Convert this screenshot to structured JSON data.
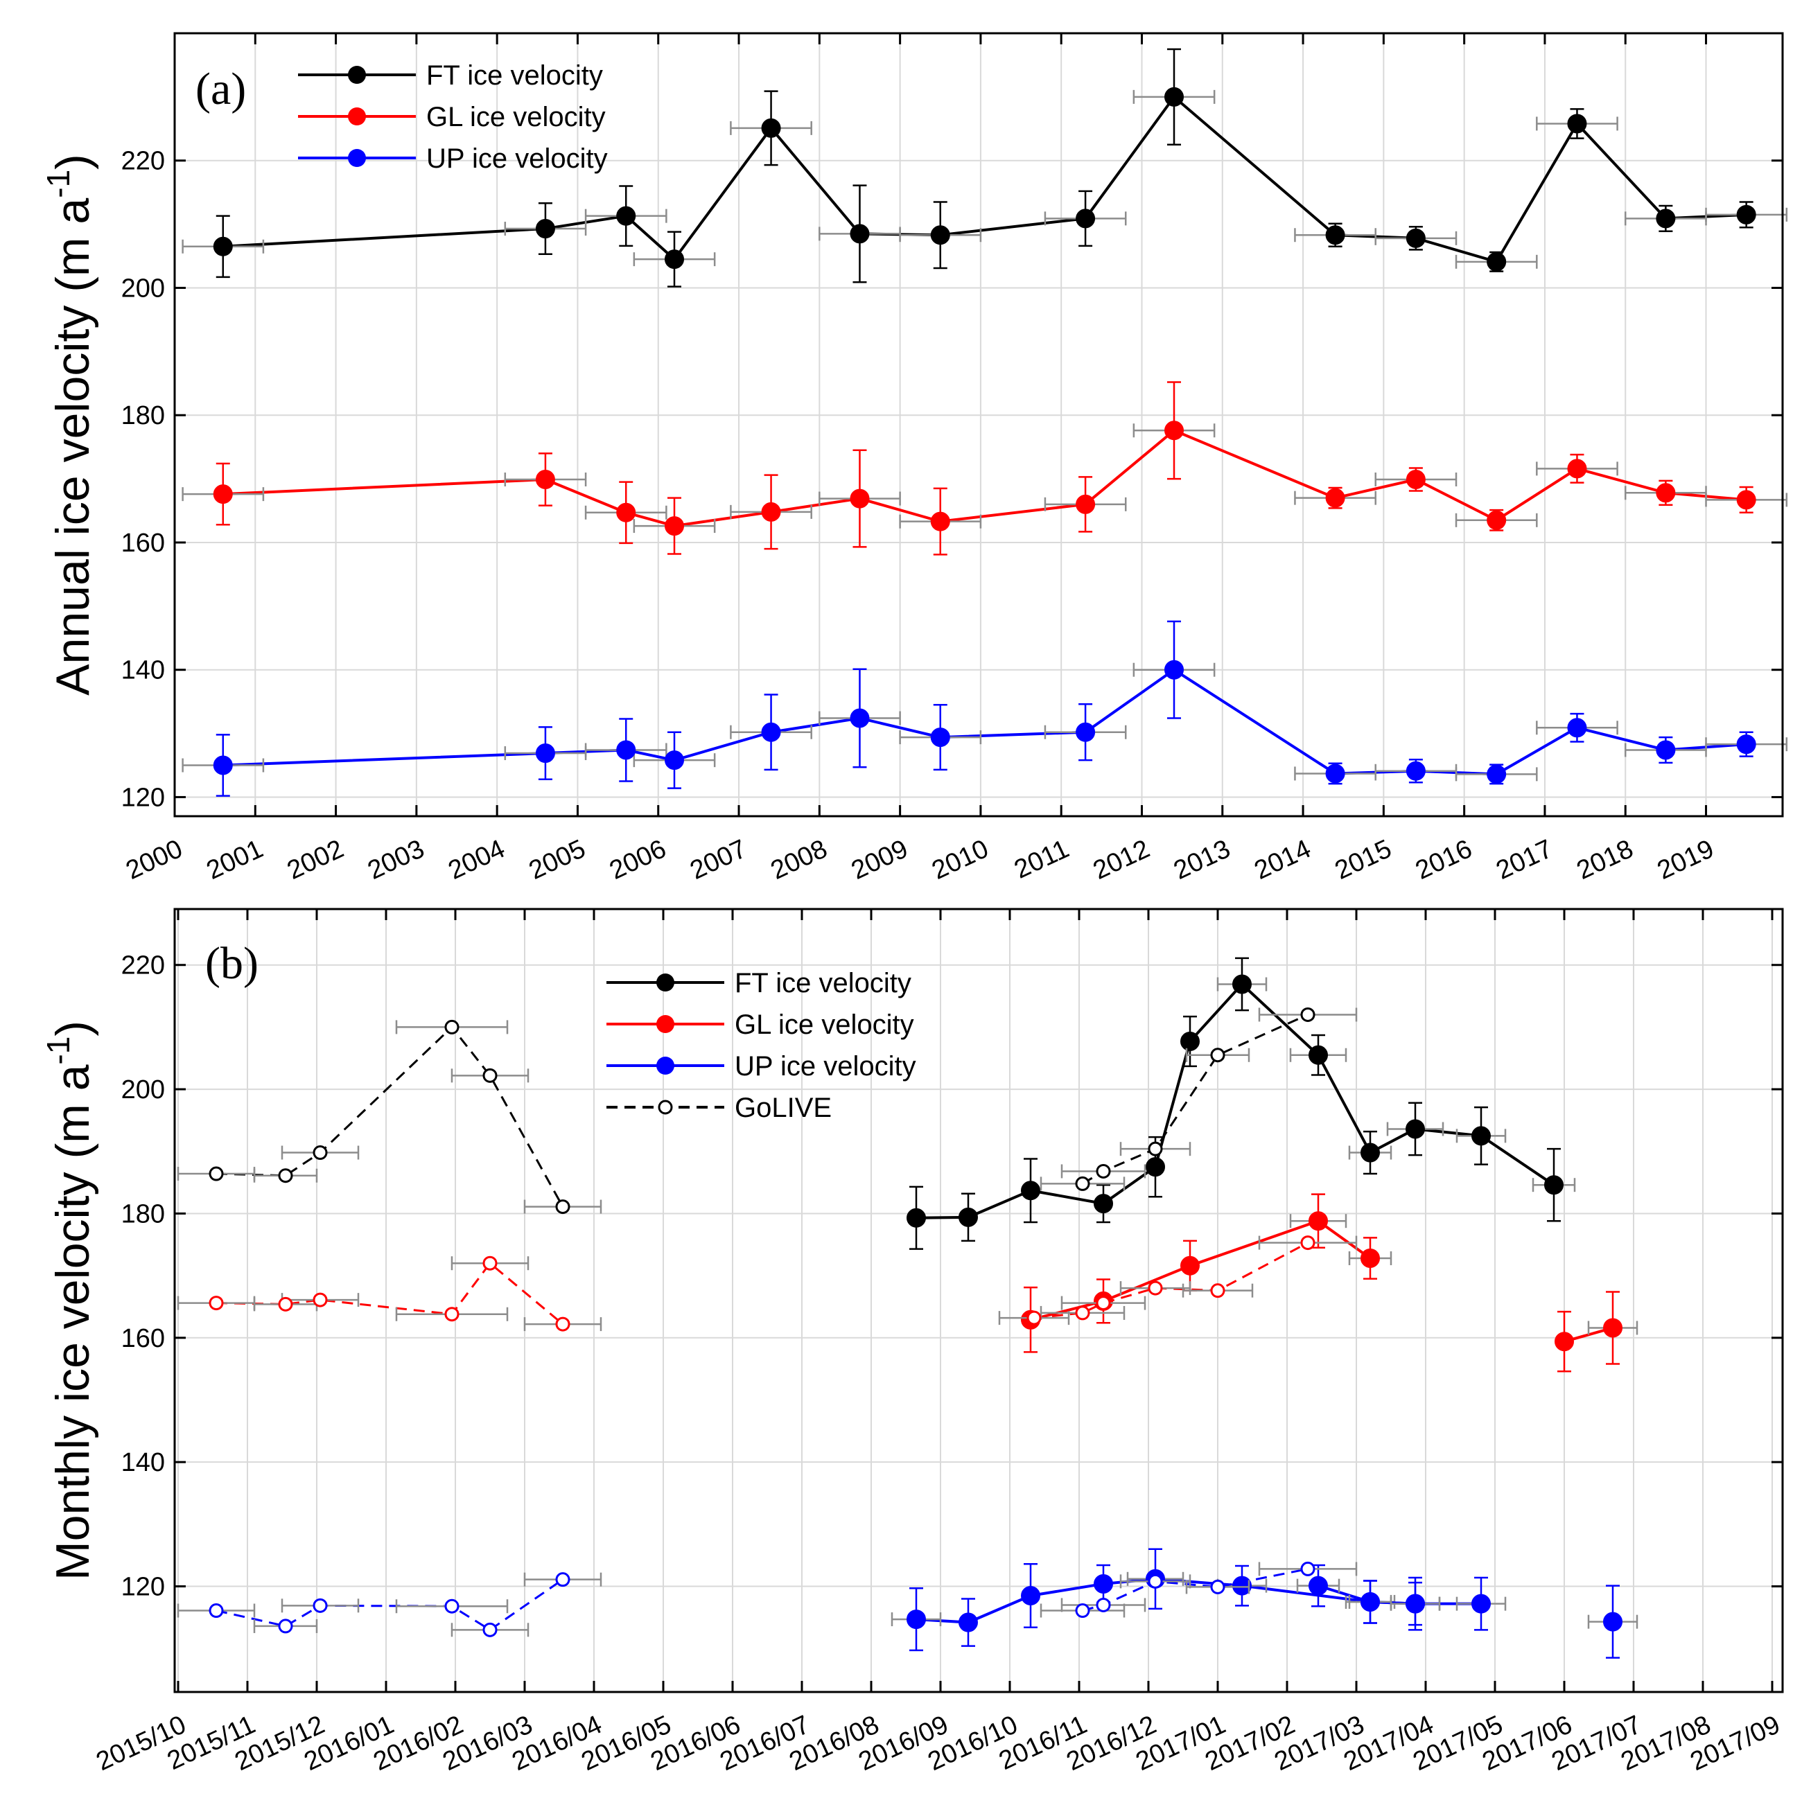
{
  "chart_data": [
    {
      "type": "line",
      "panel_label": "(a)",
      "ylabel": "Annual ice velocity (m a",
      "ylabel_sup": "-1",
      "ylabel_close": ")",
      "ylim": [
        117,
        240
      ],
      "yticks": [
        120,
        140,
        160,
        180,
        200,
        220
      ],
      "xlim": [
        2000,
        2019.95
      ],
      "xtick_values": [
        2000,
        2001,
        2002,
        2003,
        2004,
        2005,
        2006,
        2007,
        2008,
        2009,
        2010,
        2011,
        2012,
        2013,
        2014,
        2015,
        2016,
        2017,
        2018,
        2019
      ],
      "xtick_labels": [
        "2000",
        "2001",
        "2002",
        "2003",
        "2004",
        "2005",
        "2006",
        "2007",
        "2008",
        "2009",
        "2010",
        "2011",
        "2012",
        "2013",
        "2014",
        "2015",
        "2016",
        "2017",
        "2018",
        "2019"
      ],
      "legend": [
        "FT ice velocity",
        "GL ice velocity",
        "UP ice velocity"
      ],
      "series": [
        {
          "name": "FT ice velocity",
          "color": "#000000",
          "x": [
            2000.6,
            2004.6,
            2005.6,
            2006.2,
            2007.4,
            2008.5,
            2009.5,
            2011.3,
            2012.4,
            2014.4,
            2015.4,
            2016.4,
            2017.4,
            2018.5,
            2019.5
          ],
          "y": [
            206.5,
            209.3,
            211.3,
            204.5,
            225.1,
            208.5,
            208.3,
            210.9,
            230.0,
            208.3,
            207.8,
            204.1,
            225.8,
            210.9,
            211.5
          ],
          "err": [
            4.8,
            4.0,
            4.7,
            4.3,
            5.8,
            7.6,
            5.2,
            4.3,
            7.5,
            1.8,
            1.8,
            1.5,
            2.3,
            2.0,
            2.0
          ],
          "xerr": [
            0.5,
            0.5,
            0.5,
            0.5,
            0.5,
            0.5,
            0.5,
            0.5,
            0.5,
            0.5,
            0.5,
            0.5,
            0.5,
            0.5,
            0.5
          ]
        },
        {
          "name": "GL ice velocity",
          "color": "#ff0000",
          "x": [
            2000.6,
            2004.6,
            2005.6,
            2006.2,
            2007.4,
            2008.5,
            2009.5,
            2011.3,
            2012.4,
            2014.4,
            2015.4,
            2016.4,
            2017.4,
            2018.5,
            2019.5
          ],
          "y": [
            167.6,
            169.9,
            164.7,
            162.6,
            164.8,
            166.9,
            163.3,
            166.0,
            177.6,
            167.0,
            169.9,
            163.5,
            171.6,
            167.8,
            166.7
          ],
          "err": [
            4.8,
            4.1,
            4.8,
            4.4,
            5.8,
            7.6,
            5.2,
            4.3,
            7.6,
            1.6,
            1.8,
            1.6,
            2.2,
            1.9,
            2.0
          ],
          "xerr": [
            0.5,
            0.5,
            0.5,
            0.5,
            0.5,
            0.5,
            0.5,
            0.5,
            0.5,
            0.5,
            0.5,
            0.5,
            0.5,
            0.5,
            0.5
          ]
        },
        {
          "name": "UP ice velocity",
          "color": "#0000ff",
          "x": [
            2000.6,
            2004.6,
            2005.6,
            2006.2,
            2007.4,
            2008.5,
            2009.5,
            2011.3,
            2012.4,
            2014.4,
            2015.4,
            2016.4,
            2017.4,
            2018.5,
            2019.5
          ],
          "y": [
            125.0,
            126.9,
            127.4,
            125.8,
            130.2,
            132.4,
            129.4,
            130.2,
            140.0,
            123.7,
            124.1,
            123.6,
            130.9,
            127.4,
            128.3
          ],
          "err": [
            4.8,
            4.1,
            4.9,
            4.4,
            5.9,
            7.7,
            5.1,
            4.4,
            7.6,
            1.6,
            1.8,
            1.5,
            2.2,
            2.0,
            1.9
          ],
          "xerr": [
            0.5,
            0.5,
            0.5,
            0.5,
            0.5,
            0.5,
            0.5,
            0.5,
            0.5,
            0.5,
            0.5,
            0.5,
            0.5,
            0.5,
            0.5
          ]
        }
      ]
    },
    {
      "type": "line",
      "panel_label": "(b)",
      "ylabel": "Monthly ice velocity (m a",
      "ylabel_sup": "-1",
      "ylabel_close": ")",
      "ylim": [
        103,
        229
      ],
      "yticks": [
        120,
        140,
        160,
        180,
        200,
        220
      ],
      "xlim": [
        -0.05,
        23.15
      ],
      "xtick_values": [
        0,
        1,
        2,
        3,
        4,
        5,
        6,
        7,
        8,
        9,
        10,
        11,
        12,
        13,
        14,
        15,
        16,
        17,
        18,
        19,
        20,
        21,
        22,
        23
      ],
      "xtick_labels": [
        "2015/10",
        "2015/11",
        "2015/12",
        "2016/01",
        "2016/02",
        "2016/03",
        "2016/04",
        "2016/05",
        "2016/06",
        "2016/07",
        "2016/08",
        "2016/09",
        "2016/10",
        "2016/11",
        "2016/12",
        "2017/01",
        "2017/02",
        "2017/03",
        "2017/04",
        "2017/05",
        "2017/06",
        "2017/07",
        "2017/08",
        "2017/09"
      ],
      "legend": [
        "FT ice velocity",
        "GL ice velocity",
        "UP ice velocity",
        "GoLIVE"
      ],
      "series": [
        {
          "name": "FT ice velocity",
          "color": "#000000",
          "style": "solid-filled",
          "segments": [
            {
              "x": [
                10.65,
                11.4,
                12.3,
                13.35,
                14.1,
                14.6,
                15.35,
                16.45,
                17.2,
                17.85,
                18.8,
                19.85,
                20.7
              ],
              "y": [
                179.3,
                179.4,
                183.7,
                181.6,
                187.5,
                207.7,
                216.9,
                205.5,
                189.8,
                193.6,
                192.5,
                184.6,
                null
              ],
              "err": [
                5.0,
                3.8,
                5.1,
                3.0,
                4.8,
                4.0,
                4.2,
                3.2,
                3.4,
                4.2,
                4.6,
                5.8,
                null
              ],
              "xerr": [
                0.0,
                0.0,
                0.0,
                0.0,
                0.0,
                0.0,
                0.35,
                0.4,
                0.3,
                0.4,
                0.35,
                0.3,
                null
              ]
            }
          ]
        },
        {
          "name": "GL ice velocity",
          "color": "#ff0000",
          "style": "solid-filled",
          "segments": [
            {
              "x": [
                12.3,
                13.35,
                14.6,
                16.45,
                17.2
              ],
              "y": [
                162.9,
                165.9,
                171.6,
                178.8,
                172.8
              ],
              "err": [
                5.2,
                3.5,
                4.0,
                4.3,
                3.3
              ],
              "xerr": [
                0,
                0,
                0,
                0.4,
                0.3
              ]
            },
            {
              "x": [
                20.0,
                20.7
              ],
              "y": [
                159.4,
                161.6
              ],
              "err": [
                4.8,
                5.8
              ],
              "xerr": [
                0,
                0.35
              ]
            }
          ]
        },
        {
          "name": "UP ice velocity",
          "color": "#0000ff",
          "style": "solid-filled",
          "segments": [
            {
              "x": [
                10.65,
                11.4,
                12.3,
                13.35,
                14.1,
                15.35,
                17.2,
                17.85,
                18.8
              ],
              "y": [
                114.7,
                114.2,
                118.5,
                120.4,
                121.2,
                120.1,
                117.5,
                117.2,
                null
              ],
              "err": [
                5.0,
                3.8,
                5.1,
                3.0,
                4.8,
                3.2,
                3.4,
                4.2,
                null
              ],
              "xerr": [
                0.35,
                0,
                0,
                0,
                0.4,
                0.35,
                0.35,
                0.35,
                null
              ]
            },
            {
              "x": [
                16.45,
                17.2,
                17.85,
                18.8
              ],
              "y": [
                120.1,
                117.5,
                117.2,
                117.2
              ],
              "err": [
                3.3,
                3.4,
                3.4,
                4.2
              ],
              "xerr": [
                0.3,
                0.3,
                0.35,
                0.35
              ]
            },
            {
              "x": [
                20.7
              ],
              "y": [
                114.3
              ],
              "err": [
                5.8
              ],
              "xerr": [
                0.35
              ]
            }
          ]
        },
        {
          "name": "GoLIVE FT",
          "color": "#000000",
          "style": "dashed-open",
          "segments": [
            {
              "x": [
                0.55,
                1.55,
                2.05,
                3.95,
                4.5,
                5.55
              ],
              "y": [
                186.4,
                186.1,
                189.8,
                210.0,
                202.2,
                181.1
              ],
              "xerr": [
                0.55,
                0.45,
                0.55,
                0.8,
                0.55,
                0.55
              ]
            },
            {
              "x": [
                13.05,
                13.35,
                14.1,
                15.0,
                16.3
              ],
              "y": [
                184.8,
                186.8,
                190.4,
                205.5,
                212.0
              ],
              "xerr": [
                0.6,
                0.6,
                0.5,
                0.45,
                0.7
              ]
            }
          ]
        },
        {
          "name": "GoLIVE GL",
          "color": "#ff0000",
          "style": "dashed-open",
          "segments": [
            {
              "x": [
                0.55,
                1.55,
                2.05,
                3.95,
                4.5,
                5.55
              ],
              "y": [
                165.6,
                165.4,
                166.1,
                163.8,
                172.0,
                162.2
              ],
              "xerr": [
                0.55,
                0.45,
                0.55,
                0.8,
                0.55,
                0.55
              ]
            },
            {
              "x": [
                12.35,
                13.05,
                13.35,
                14.1,
                15.0,
                16.3
              ],
              "y": [
                163.2,
                164.0,
                165.6,
                168.0,
                167.6,
                175.3
              ],
              "xerr": [
                0.5,
                0.6,
                0.6,
                0.5,
                0.5,
                0.7
              ]
            }
          ]
        },
        {
          "name": "GoLIVE UP",
          "color": "#0000ff",
          "style": "dashed-open",
          "segments": [
            {
              "x": [
                0.55,
                1.55,
                2.05,
                3.95,
                4.5,
                5.55
              ],
              "y": [
                116.1,
                113.6,
                116.9,
                116.8,
                113.0,
                121.1
              ],
              "xerr": [
                0.55,
                0.45,
                0.55,
                0.8,
                0.55,
                0.55
              ]
            },
            {
              "x": [
                13.05,
                13.35,
                14.1,
                15.0,
                16.3
              ],
              "y": [
                116.1,
                117.0,
                120.8,
                119.9,
                122.8
              ],
              "xerr": [
                0.6,
                0.6,
                0.5,
                0.45,
                0.7
              ]
            }
          ]
        }
      ]
    }
  ]
}
